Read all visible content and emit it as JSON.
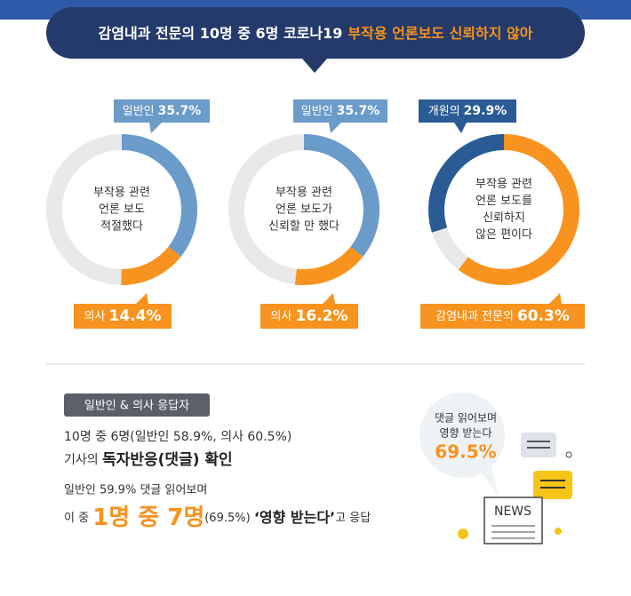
{
  "header": {
    "title_main": "감염내과 전문의 10명 중 6명 코로나19",
    "title_highlight": "부작용 언론보도 신뢰하지 않아"
  },
  "donuts": [
    {
      "center_text": [
        "부작용 관련",
        "언론 보도",
        "적절했다"
      ],
      "segments": [
        {
          "name": "일반인",
          "value": 35.7,
          "value_label": "35.7%",
          "color": "#6b9bc9"
        },
        {
          "name": "의사",
          "value": 14.4,
          "value_label": "14.4%",
          "color": "#f7931e"
        }
      ]
    },
    {
      "center_text": [
        "부작용 관련",
        "언론 보도가",
        "신뢰할 만 했다"
      ],
      "segments": [
        {
          "name": "일반인",
          "value": 35.7,
          "value_label": "35.7%",
          "color": "#6b9bc9"
        },
        {
          "name": "의사",
          "value": 16.2,
          "value_label": "16.2%",
          "color": "#f7931e"
        }
      ]
    },
    {
      "center_text": [
        "부작용 관련",
        "언론 보도를",
        "신뢰하지",
        "않은 편이다"
      ],
      "segments": [
        {
          "name": "개원의",
          "value": 29.9,
          "value_label": "29.9%",
          "color": "#2a5b94"
        },
        {
          "name": "감염내과 전문의",
          "value": 60.3,
          "value_label": "60.3%",
          "color": "#f7931e"
        }
      ]
    }
  ],
  "summary": {
    "badge": "일반인 & 의사 응답자",
    "line1": "10명 중 6명(일반인 58.9%, 의사 60.5%)",
    "line2_prefix": "기사의 ",
    "line2_bold": "독자반응(댓글) 확인",
    "line3": "일반인 59.9% 댓글 읽어보며",
    "line4_prefix": "이 중 ",
    "line4_big": "1명 중 7명",
    "line4_paren": "(69.5%) ",
    "line4_bold": "‘영향 받는다’",
    "line4_suffix": "고 응답"
  },
  "bubble": {
    "lines": [
      "댓글 읽어보며",
      "영향 받는다"
    ],
    "value": "69.5%",
    "icon_text": "NEWS"
  }
}
